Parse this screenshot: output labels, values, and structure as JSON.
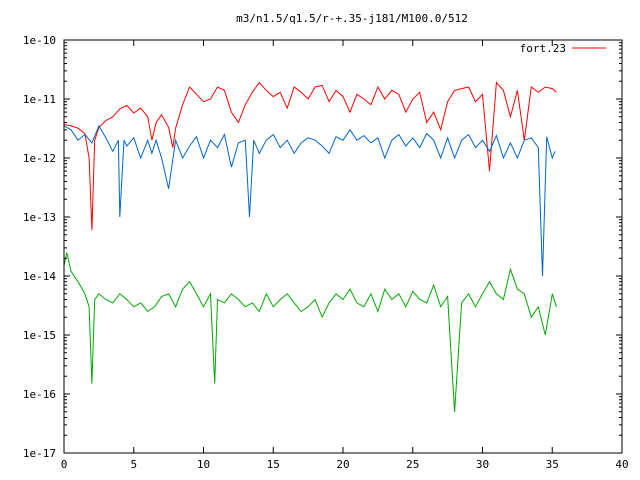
{
  "chart_data": {
    "type": "line",
    "title": "m3/n1.5/q1.5/r-+.35-j181/M100.0/512",
    "xlabel": "",
    "ylabel": "",
    "xlim": [
      0,
      40
    ],
    "ylim": [
      1e-17,
      1e-10
    ],
    "y_scale": "log",
    "grid": false,
    "legend_position": "top-right",
    "x_ticks": [
      0,
      5,
      10,
      15,
      20,
      25,
      30,
      35,
      40
    ],
    "x_tick_labels": [
      "0",
      "5",
      "10",
      "15",
      "20",
      "25",
      "30",
      "35",
      "40"
    ],
    "y_ticks": [
      1e-17,
      1e-16,
      1e-15,
      1e-14,
      1e-13,
      1e-12,
      1e-11,
      1e-10
    ],
    "y_tick_labels": [
      "1e-17",
      "1e-16",
      "1e-15",
      "1e-14",
      "1e-13",
      "1e-12",
      "1e-11",
      "1e-10"
    ],
    "series": [
      {
        "name": "fort.23",
        "color": "#ff0000",
        "x": [
          0,
          0.5,
          1,
          1.5,
          1.8,
          2,
          2.2,
          2.5,
          3,
          3.5,
          4,
          4.5,
          5,
          5.5,
          6,
          6.3,
          6.6,
          7,
          7.5,
          7.8,
          8,
          8.5,
          9,
          9.5,
          10,
          10.5,
          11,
          11.5,
          12,
          12.5,
          13,
          13.5,
          14,
          14.5,
          15,
          15.5,
          16,
          16.5,
          17,
          17.5,
          18,
          18.5,
          19,
          19.5,
          20,
          20.5,
          21,
          21.5,
          22,
          22.5,
          23,
          23.5,
          24,
          24.5,
          25,
          25.5,
          26,
          26.5,
          27,
          27.5,
          28,
          28.5,
          29,
          29.5,
          30,
          30.5,
          31,
          31.5,
          32,
          32.5,
          33,
          33.5,
          34,
          34.5,
          35,
          35.3
        ],
        "y": [
          3.7e-12,
          3.5e-12,
          3.2e-12,
          2.6e-12,
          1e-12,
          6e-14,
          2e-12,
          3.3e-12,
          4.3e-12,
          5e-12,
          6.8e-12,
          7.8e-12,
          5.8e-12,
          7e-12,
          5e-12,
          2e-12,
          4e-12,
          5.4e-12,
          3.3e-12,
          1.5e-12,
          3.2e-12,
          8e-12,
          1.6e-11,
          1.2e-11,
          9e-12,
          1e-11,
          1.6e-11,
          1.4e-11,
          6e-12,
          4e-12,
          8e-12,
          1.3e-11,
          1.9e-11,
          1.4e-11,
          1.1e-11,
          1.3e-11,
          7e-12,
          1.6e-11,
          1.3e-11,
          1e-11,
          1.6e-11,
          1.7e-11,
          9e-12,
          1.4e-11,
          1.1e-11,
          6e-12,
          1.2e-11,
          1e-11,
          8e-12,
          1.6e-11,
          1e-11,
          1.4e-11,
          1.2e-11,
          6e-12,
          1e-11,
          1.3e-11,
          4e-12,
          6e-12,
          3e-12,
          9e-12,
          1.4e-11,
          1.5e-11,
          1.6e-11,
          9e-12,
          1.2e-11,
          6e-13,
          1.9e-11,
          1.4e-11,
          5e-12,
          1.4e-11,
          2e-12,
          1.6e-11,
          1.3e-11,
          1.6e-11,
          1.5e-11,
          1.3e-11
        ]
      },
      {
        "name": "",
        "color": "#0066cc",
        "x": [
          0,
          0.5,
          1,
          1.5,
          2,
          2.5,
          3,
          3.5,
          3.9,
          4,
          4.3,
          4.5,
          5,
          5.5,
          6,
          6.3,
          6.6,
          7,
          7.5,
          8,
          8.5,
          9,
          9.5,
          10,
          10.5,
          11,
          11.5,
          12,
          12.5,
          13,
          13.3,
          13.6,
          14,
          14.5,
          15,
          15.5,
          16,
          16.5,
          17,
          17.5,
          18,
          18.5,
          19,
          19.5,
          20,
          20.5,
          21,
          21.5,
          22,
          22.5,
          23,
          23.5,
          24,
          24.5,
          25,
          25.5,
          26,
          26.5,
          27,
          27.5,
          28,
          28.5,
          29,
          29.5,
          30,
          30.5,
          31,
          31.5,
          32,
          32.5,
          33,
          33.5,
          34,
          34.3,
          34.6,
          35,
          35.2
        ],
        "y": [
          3.5e-12,
          3e-12,
          2e-12,
          2.5e-12,
          1.8e-12,
          3.5e-12,
          2.2e-12,
          1.3e-12,
          2e-12,
          1e-13,
          2e-12,
          1.6e-12,
          2.2e-12,
          1e-12,
          2e-12,
          1.2e-12,
          2e-12,
          1e-12,
          3e-13,
          2e-12,
          1e-12,
          1.6e-12,
          2.3e-12,
          1e-12,
          2e-12,
          1.5e-12,
          2.5e-12,
          7e-13,
          1.8e-12,
          2e-12,
          1e-13,
          2e-12,
          1.2e-12,
          2e-12,
          2.5e-12,
          1.5e-12,
          2e-12,
          1.2e-12,
          1.8e-12,
          2.2e-12,
          2e-12,
          1.6e-12,
          1.2e-12,
          2.3e-12,
          2e-12,
          3e-12,
          2e-12,
          2.4e-12,
          1.8e-12,
          2.2e-12,
          1e-12,
          2e-12,
          2.5e-12,
          1.6e-12,
          2.2e-12,
          1.5e-12,
          2.6e-12,
          2e-12,
          1e-12,
          2.2e-12,
          1e-12,
          2e-12,
          2.5e-12,
          1.5e-12,
          2e-12,
          1.3e-12,
          2.4e-12,
          1e-12,
          1.8e-12,
          1e-12,
          2e-12,
          2.2e-12,
          1.5e-12,
          1e-14,
          2.3e-12,
          1e-12,
          1.3e-12
        ]
      },
      {
        "name": "",
        "color": "#00aa00",
        "x": [
          0,
          0.2,
          0.5,
          1,
          1.5,
          1.8,
          2,
          2.2,
          2.5,
          3,
          3.5,
          4,
          4.5,
          5,
          5.5,
          6,
          6.5,
          7,
          7.5,
          8,
          8.5,
          9,
          9.5,
          10,
          10.5,
          10.8,
          11,
          11.5,
          12,
          12.5,
          13,
          13.5,
          14,
          14.5,
          15,
          15.5,
          16,
          16.5,
          17,
          17.5,
          18,
          18.5,
          19,
          19.5,
          20,
          20.5,
          21,
          21.5,
          22,
          22.5,
          23,
          23.5,
          24,
          24.5,
          25,
          25.5,
          26,
          26.5,
          27,
          27.5,
          28,
          28.5,
          29,
          29.5,
          30,
          30.5,
          31,
          31.5,
          32,
          32.5,
          33,
          33.5,
          34,
          34.5,
          35,
          35.3
        ],
        "y": [
          1.5e-14,
          2.5e-14,
          1.2e-14,
          8e-15,
          5e-15,
          3e-15,
          1.5e-16,
          4e-15,
          5e-15,
          4e-15,
          3.5e-15,
          5e-15,
          4e-15,
          3e-15,
          3.5e-15,
          2.5e-15,
          3e-15,
          4.5e-15,
          5e-15,
          3e-15,
          6e-15,
          8e-15,
          5e-15,
          3e-15,
          5e-15,
          1.5e-16,
          4e-15,
          3.5e-15,
          5e-15,
          4e-15,
          3e-15,
          3.5e-15,
          2.5e-15,
          5e-15,
          3e-15,
          4e-15,
          5e-15,
          3.5e-15,
          2.5e-15,
          3e-15,
          4e-15,
          2e-15,
          3.5e-15,
          5e-15,
          4e-15,
          6e-15,
          3.5e-15,
          3e-15,
          5e-15,
          2.5e-15,
          6e-15,
          4e-15,
          5e-15,
          3e-15,
          5.5e-15,
          4e-15,
          3.5e-15,
          7e-15,
          3e-15,
          4.5e-15,
          5e-17,
          3.5e-15,
          5e-15,
          3e-15,
          5e-15,
          8e-15,
          5e-15,
          4e-15,
          1.3e-14,
          6e-15,
          5e-15,
          2e-15,
          3e-15,
          1e-15,
          5e-15,
          3e-15
        ]
      }
    ]
  }
}
